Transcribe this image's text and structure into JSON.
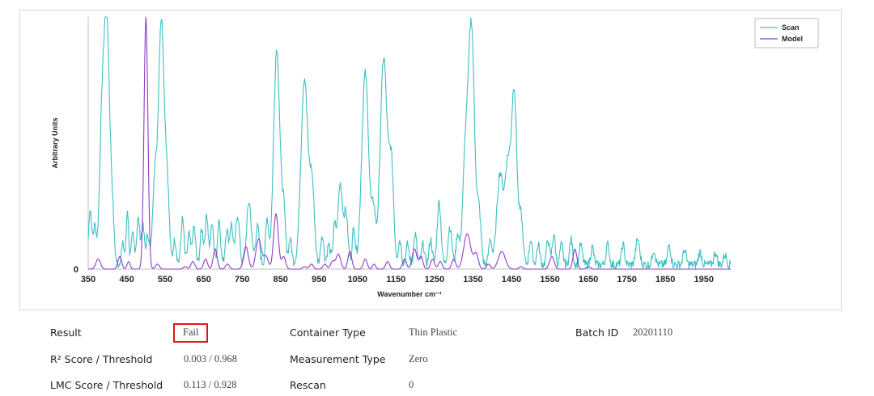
{
  "colors": {
    "scan": "#3cc0c2",
    "model": "#8e3cc6",
    "fail_border": "#e0161d",
    "axis": "#bdbdbd"
  },
  "chart_data": {
    "type": "line",
    "title": "",
    "xlabel": "Wavenumber cm⁻¹",
    "ylabel": "Arbitrary Units",
    "xlim": [
      350,
      2020
    ],
    "ylim": [
      0,
      1.0
    ],
    "x_ticks": [
      350,
      450,
      550,
      650,
      750,
      850,
      950,
      1050,
      1150,
      1250,
      1350,
      1450,
      1550,
      1650,
      1750,
      1850,
      1950
    ],
    "x_tick_labels": [
      "350",
      "450",
      "550",
      "650",
      "750",
      "850",
      "950",
      "1050",
      "1150",
      "1250",
      "1350",
      "1450",
      "1550",
      "1650",
      "1750",
      "1850",
      "1950"
    ],
    "y_tick_labels": [
      "0"
    ],
    "legend": {
      "position": "top-right",
      "entries": [
        "Scan",
        "Model"
      ]
    },
    "series": [
      {
        "name": "Scan",
        "peaks": [
          {
            "x": 355,
            "h": 0.22,
            "w": 4
          },
          {
            "x": 367,
            "h": 0.15,
            "w": 4
          },
          {
            "x": 385,
            "h": 0.5,
            "w": 6
          },
          {
            "x": 398,
            "h": 0.99,
            "w": 7
          },
          {
            "x": 412,
            "h": 0.2,
            "w": 5
          },
          {
            "x": 440,
            "h": 0.08,
            "w": 4
          },
          {
            "x": 452,
            "h": 0.22,
            "w": 3
          },
          {
            "x": 466,
            "h": 0.12,
            "w": 4
          },
          {
            "x": 480,
            "h": 0.18,
            "w": 4
          },
          {
            "x": 492,
            "h": 0.15,
            "w": 4
          },
          {
            "x": 505,
            "h": 0.12,
            "w": 4
          },
          {
            "x": 522,
            "h": 0.3,
            "w": 5
          },
          {
            "x": 540,
            "h": 0.98,
            "w": 8
          },
          {
            "x": 556,
            "h": 0.25,
            "w": 5
          },
          {
            "x": 575,
            "h": 0.1,
            "w": 4
          },
          {
            "x": 595,
            "h": 0.18,
            "w": 4
          },
          {
            "x": 612,
            "h": 0.12,
            "w": 4
          },
          {
            "x": 625,
            "h": 0.15,
            "w": 4
          },
          {
            "x": 645,
            "h": 0.14,
            "w": 4
          },
          {
            "x": 658,
            "h": 0.2,
            "w": 4
          },
          {
            "x": 672,
            "h": 0.16,
            "w": 4
          },
          {
            "x": 690,
            "h": 0.18,
            "w": 4
          },
          {
            "x": 710,
            "h": 0.14,
            "w": 4
          },
          {
            "x": 722,
            "h": 0.16,
            "w": 4
          },
          {
            "x": 738,
            "h": 0.2,
            "w": 5
          },
          {
            "x": 768,
            "h": 0.25,
            "w": 6
          },
          {
            "x": 790,
            "h": 0.15,
            "w": 5
          },
          {
            "x": 815,
            "h": 0.18,
            "w": 4
          },
          {
            "x": 840,
            "h": 0.86,
            "w": 8
          },
          {
            "x": 858,
            "h": 0.2,
            "w": 5
          },
          {
            "x": 875,
            "h": 0.1,
            "w": 4
          },
          {
            "x": 912,
            "h": 0.74,
            "w": 9
          },
          {
            "x": 932,
            "h": 0.3,
            "w": 6
          },
          {
            "x": 958,
            "h": 0.12,
            "w": 4
          },
          {
            "x": 975,
            "h": 0.08,
            "w": 4
          },
          {
            "x": 990,
            "h": 0.15,
            "w": 4
          },
          {
            "x": 1005,
            "h": 0.32,
            "w": 6
          },
          {
            "x": 1020,
            "h": 0.2,
            "w": 5
          },
          {
            "x": 1040,
            "h": 0.14,
            "w": 4
          },
          {
            "x": 1070,
            "h": 0.76,
            "w": 9
          },
          {
            "x": 1092,
            "h": 0.2,
            "w": 5
          },
          {
            "x": 1118,
            "h": 0.82,
            "w": 9
          },
          {
            "x": 1138,
            "h": 0.38,
            "w": 6
          },
          {
            "x": 1160,
            "h": 0.1,
            "w": 4
          },
          {
            "x": 1180,
            "h": 0.08,
            "w": 4
          },
          {
            "x": 1200,
            "h": 0.12,
            "w": 4
          },
          {
            "x": 1220,
            "h": 0.08,
            "w": 4
          },
          {
            "x": 1240,
            "h": 0.1,
            "w": 4
          },
          {
            "x": 1262,
            "h": 0.25,
            "w": 5
          },
          {
            "x": 1290,
            "h": 0.15,
            "w": 5
          },
          {
            "x": 1310,
            "h": 0.12,
            "w": 4
          },
          {
            "x": 1330,
            "h": 0.4,
            "w": 7
          },
          {
            "x": 1346,
            "h": 0.94,
            "w": 8
          },
          {
            "x": 1366,
            "h": 0.2,
            "w": 5
          },
          {
            "x": 1395,
            "h": 0.1,
            "w": 4
          },
          {
            "x": 1420,
            "h": 0.36,
            "w": 8
          },
          {
            "x": 1440,
            "h": 0.38,
            "w": 7
          },
          {
            "x": 1457,
            "h": 0.69,
            "w": 7
          },
          {
            "x": 1475,
            "h": 0.18,
            "w": 5
          },
          {
            "x": 1500,
            "h": 0.1,
            "w": 4
          },
          {
            "x": 1520,
            "h": 0.08,
            "w": 4
          },
          {
            "x": 1545,
            "h": 0.1,
            "w": 4
          },
          {
            "x": 1560,
            "h": 0.12,
            "w": 4
          },
          {
            "x": 1580,
            "h": 0.08,
            "w": 4
          },
          {
            "x": 1605,
            "h": 0.1,
            "w": 4
          },
          {
            "x": 1630,
            "h": 0.08,
            "w": 4
          },
          {
            "x": 1660,
            "h": 0.07,
            "w": 4
          },
          {
            "x": 1700,
            "h": 0.08,
            "w": 4
          },
          {
            "x": 1740,
            "h": 0.08,
            "w": 4
          },
          {
            "x": 1778,
            "h": 0.1,
            "w": 5
          },
          {
            "x": 1820,
            "h": 0.06,
            "w": 4
          },
          {
            "x": 1860,
            "h": 0.08,
            "w": 4
          },
          {
            "x": 1900,
            "h": 0.06,
            "w": 4
          },
          {
            "x": 1940,
            "h": 0.05,
            "w": 4
          },
          {
            "x": 1980,
            "h": 0.05,
            "w": 4
          },
          {
            "x": 2005,
            "h": 0.04,
            "w": 4
          }
        ]
      },
      {
        "name": "Model",
        "peaks": [
          {
            "x": 376,
            "h": 0.04,
            "w": 6
          },
          {
            "x": 432,
            "h": 0.05,
            "w": 5
          },
          {
            "x": 455,
            "h": 0.03,
            "w": 4
          },
          {
            "x": 500,
            "h": 1.0,
            "w": 5
          },
          {
            "x": 530,
            "h": 0.02,
            "w": 5
          },
          {
            "x": 602,
            "h": 0.01,
            "w": 5
          },
          {
            "x": 622,
            "h": 0.03,
            "w": 5
          },
          {
            "x": 655,
            "h": 0.04,
            "w": 5
          },
          {
            "x": 680,
            "h": 0.08,
            "w": 5
          },
          {
            "x": 712,
            "h": 0.02,
            "w": 5
          },
          {
            "x": 760,
            "h": 0.09,
            "w": 6
          },
          {
            "x": 793,
            "h": 0.12,
            "w": 7
          },
          {
            "x": 812,
            "h": 0.05,
            "w": 6
          },
          {
            "x": 838,
            "h": 0.22,
            "w": 6
          },
          {
            "x": 858,
            "h": 0.05,
            "w": 5
          },
          {
            "x": 912,
            "h": 0.01,
            "w": 5
          },
          {
            "x": 930,
            "h": 0.02,
            "w": 5
          },
          {
            "x": 965,
            "h": 0.02,
            "w": 5
          },
          {
            "x": 985,
            "h": 0.03,
            "w": 5
          },
          {
            "x": 1000,
            "h": 0.06,
            "w": 6
          },
          {
            "x": 1030,
            "h": 0.07,
            "w": 5
          },
          {
            "x": 1070,
            "h": 0.04,
            "w": 5
          },
          {
            "x": 1093,
            "h": 0.02,
            "w": 4
          },
          {
            "x": 1128,
            "h": 0.03,
            "w": 5
          },
          {
            "x": 1172,
            "h": 0.04,
            "w": 5
          },
          {
            "x": 1198,
            "h": 0.08,
            "w": 6
          },
          {
            "x": 1215,
            "h": 0.05,
            "w": 5
          },
          {
            "x": 1245,
            "h": 0.04,
            "w": 5
          },
          {
            "x": 1265,
            "h": 0.03,
            "w": 5
          },
          {
            "x": 1300,
            "h": 0.04,
            "w": 5
          },
          {
            "x": 1335,
            "h": 0.14,
            "w": 9
          },
          {
            "x": 1358,
            "h": 0.06,
            "w": 6
          },
          {
            "x": 1390,
            "h": 0.02,
            "w": 5
          },
          {
            "x": 1425,
            "h": 0.07,
            "w": 9
          },
          {
            "x": 1475,
            "h": 0.01,
            "w": 5
          },
          {
            "x": 1555,
            "h": 0.05,
            "w": 6
          },
          {
            "x": 1615,
            "h": 0.08,
            "w": 5
          },
          {
            "x": 1650,
            "h": 0.01,
            "w": 5
          }
        ]
      }
    ]
  },
  "info": {
    "result_label": "Result",
    "result_value": "Fail",
    "r2_label": "R² Score / Threshold",
    "r2_value": "0.003 / 0.968",
    "lmc_label": "LMC Score / Threshold",
    "lmc_value": "0.113 / 0.928",
    "container_label": "Container Type",
    "container_value": "Thin Plastic",
    "measurement_label": "Measurement Type",
    "measurement_value": "Zero",
    "rescan_label": "Rescan",
    "rescan_value": "0",
    "batch_label": "Batch ID",
    "batch_value": "20201110"
  }
}
